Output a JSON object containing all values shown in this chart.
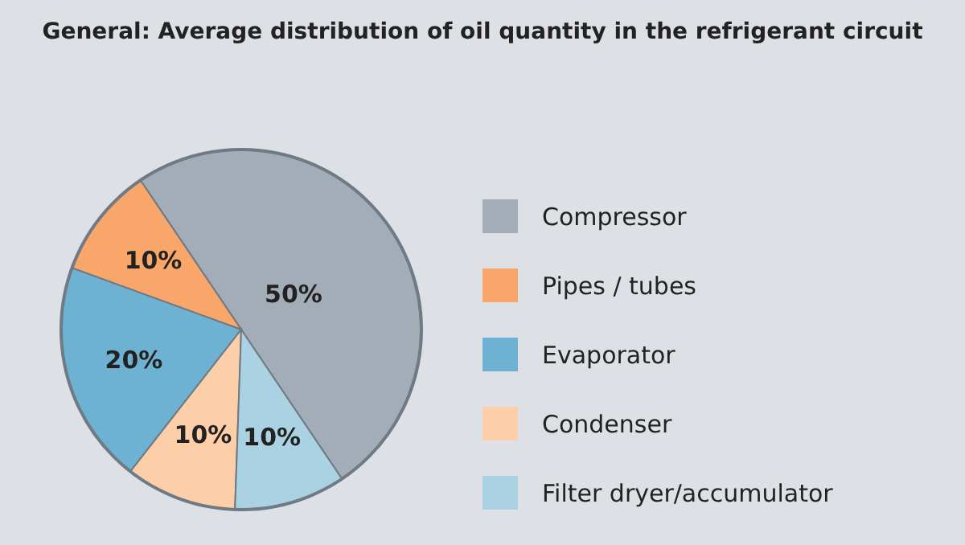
{
  "chart_data": {
    "type": "pie",
    "title": "General: Average distribution of oil quantity in the refrigerant circuit",
    "categories": [
      "Compressor",
      "Pipes / tubes",
      "Evaporator",
      "Condenser",
      "Filter dryer/accumulator"
    ],
    "values": [
      50,
      10,
      20,
      10,
      10
    ],
    "colors": [
      "#a3adb7",
      "#f9a66b",
      "#6eb2d3",
      "#fdcfa8",
      "#abd2e2"
    ],
    "value_labels": [
      "50%",
      "10%",
      "20%",
      "10%",
      "10%"
    ],
    "legend": "right"
  }
}
